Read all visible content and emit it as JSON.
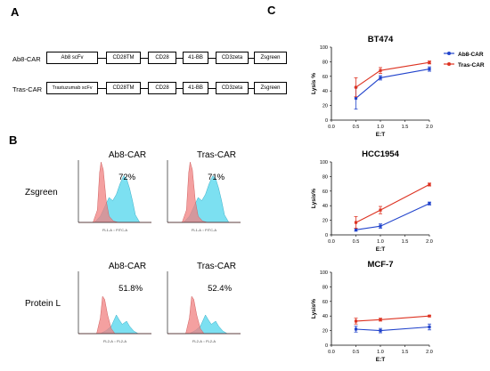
{
  "panels": {
    "a": "A",
    "b": "B",
    "c": "C"
  },
  "constructs": [
    {
      "name": "Ab8-CAR",
      "parts": [
        "Ab8 scFv",
        "CD28TM",
        "CD28",
        "41-BB",
        "CD3zeta",
        "Zsgreen"
      ]
    },
    {
      "name": "Tras-CAR",
      "parts": [
        "Trastuzumab scFv",
        "CD28TM",
        "CD28",
        "41-BB",
        "CD3zeta",
        "Zsgreen"
      ]
    }
  ],
  "flow": {
    "col_titles": [
      "Ab8-CAR",
      "Tras-CAR"
    ],
    "rows": [
      {
        "label": "Zsgreen",
        "percents": [
          "72%",
          "71%"
        ],
        "xaxis": "FL1-A :: FITC-A"
      },
      {
        "label": "Protein L",
        "percents": [
          "51.8%",
          "52.4%"
        ],
        "xaxis": "FL2-A :: FL2-A"
      }
    ],
    "colors": {
      "control": "#f08080",
      "car": "#5bd8ee"
    }
  },
  "legend": [
    {
      "name": "Ab8-CAR",
      "color": "#2244cc"
    },
    {
      "name": "Tras-CAR",
      "color": "#dd3322"
    }
  ],
  "chart_data": [
    {
      "type": "line",
      "title": "BT474",
      "xlabel": "E:T",
      "ylabel": "Lysis %",
      "xlim": [
        0.0,
        2.0
      ],
      "ylim": [
        0,
        100
      ],
      "xticks": [
        "0.0",
        "0.5",
        "1.0",
        "1.5",
        "2.0"
      ],
      "yticks": [
        "0",
        "20",
        "40",
        "60",
        "80",
        "100"
      ],
      "x": [
        0.5,
        1.0,
        2.0
      ],
      "series": [
        {
          "name": "Ab8-CAR",
          "values": [
            30,
            58,
            70
          ],
          "err": [
            15,
            3,
            3
          ]
        },
        {
          "name": "Tras-CAR",
          "values": [
            45,
            68,
            79
          ],
          "err": [
            13,
            4,
            2
          ]
        }
      ]
    },
    {
      "type": "line",
      "title": "HCC1954",
      "xlabel": "E:T",
      "ylabel": "Lysis%",
      "xlim": [
        0.0,
        2.0
      ],
      "ylim": [
        0,
        100
      ],
      "xticks": [
        "0.0",
        "0.5",
        "1.0",
        "1.5",
        "2.0"
      ],
      "yticks": [
        "0",
        "20",
        "40",
        "60",
        "80",
        "100"
      ],
      "x": [
        0.5,
        1.0,
        2.0
      ],
      "series": [
        {
          "name": "Ab8-CAR",
          "values": [
            7,
            12,
            43
          ],
          "err": [
            2,
            3,
            2
          ]
        },
        {
          "name": "Tras-CAR",
          "values": [
            17,
            34,
            69
          ],
          "err": [
            8,
            5,
            2
          ]
        }
      ]
    },
    {
      "type": "line",
      "title": "MCF-7",
      "xlabel": "E:T",
      "ylabel": "Lysis%",
      "xlim": [
        0.0,
        2.0
      ],
      "ylim": [
        0,
        100
      ],
      "xticks": [
        "0.0",
        "0.5",
        "1.0",
        "1.5",
        "2.0"
      ],
      "yticks": [
        "0",
        "20",
        "40",
        "60",
        "80",
        "100"
      ],
      "x": [
        0.5,
        1.0,
        2.0
      ],
      "series": [
        {
          "name": "Ab8-CAR",
          "values": [
            22,
            20,
            25
          ],
          "err": [
            4,
            3,
            4
          ]
        },
        {
          "name": "Tras-CAR",
          "values": [
            33,
            35,
            40
          ],
          "err": [
            4,
            2,
            1
          ]
        }
      ]
    }
  ]
}
